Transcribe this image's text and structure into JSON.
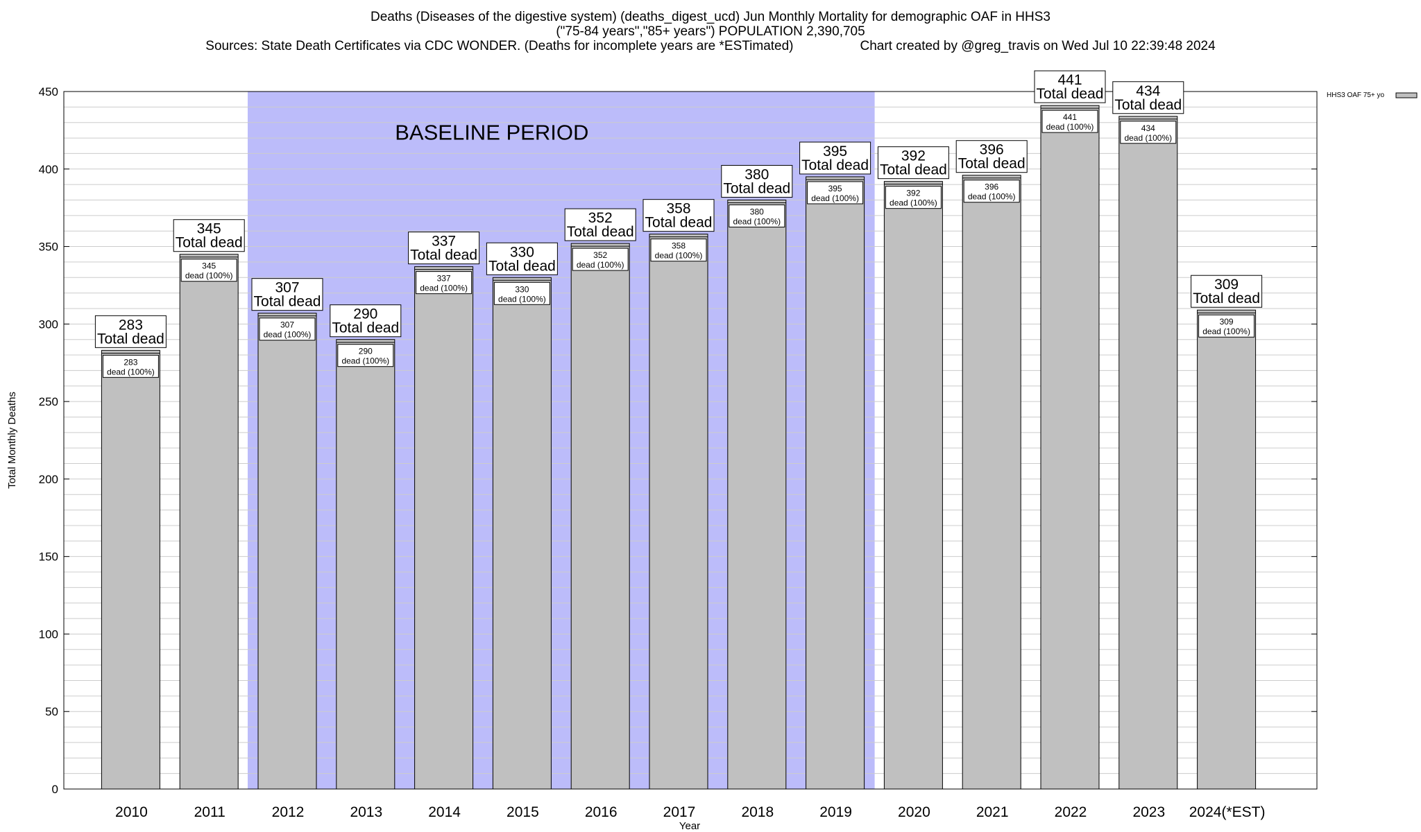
{
  "title": {
    "line1": "Deaths (Diseases of the digestive system) (deaths_digest_ucd) Jun Monthly Mortality for demographic OAF in HHS3",
    "line2": "(\"75-84 years\",\"85+ years\") POPULATION 2,390,705",
    "line3a": "Sources: State Death Certificates via CDC WONDER. (Deaths for incomplete years are *ESTimated)",
    "line3b": "Chart created by @greg_travis on Wed Jul 10 22:39:48 2024"
  },
  "chart_data": {
    "type": "bar",
    "categories": [
      "2010",
      "2011",
      "2012",
      "2013",
      "2014",
      "2015",
      "2016",
      "2017",
      "2018",
      "2019",
      "2020",
      "2021",
      "2022",
      "2023",
      "2024(*EST)"
    ],
    "series": [
      {
        "name": "HHS3 OAF 75+ yo",
        "values": [
          283,
          345,
          307,
          290,
          337,
          330,
          352,
          358,
          380,
          395,
          392,
          396,
          441,
          434,
          309
        ]
      }
    ],
    "xlabel": "Year",
    "ylabel": "Total Monthly Deaths",
    "ylim": [
      0,
      450
    ],
    "yticks": [
      0,
      50,
      100,
      150,
      200,
      250,
      300,
      350,
      400,
      450
    ],
    "total_label_suffix": "Total dead",
    "inner_label_suffix": "dead (100%)",
    "baseline": {
      "label": "BASELINE PERIOD",
      "from": "2012",
      "to": "2019"
    },
    "legend_position": "top-right",
    "grid": true,
    "colors": {
      "bar": "#c0c0c0",
      "baseline": "#bcbcfa",
      "grid": "#cccccc"
    }
  }
}
